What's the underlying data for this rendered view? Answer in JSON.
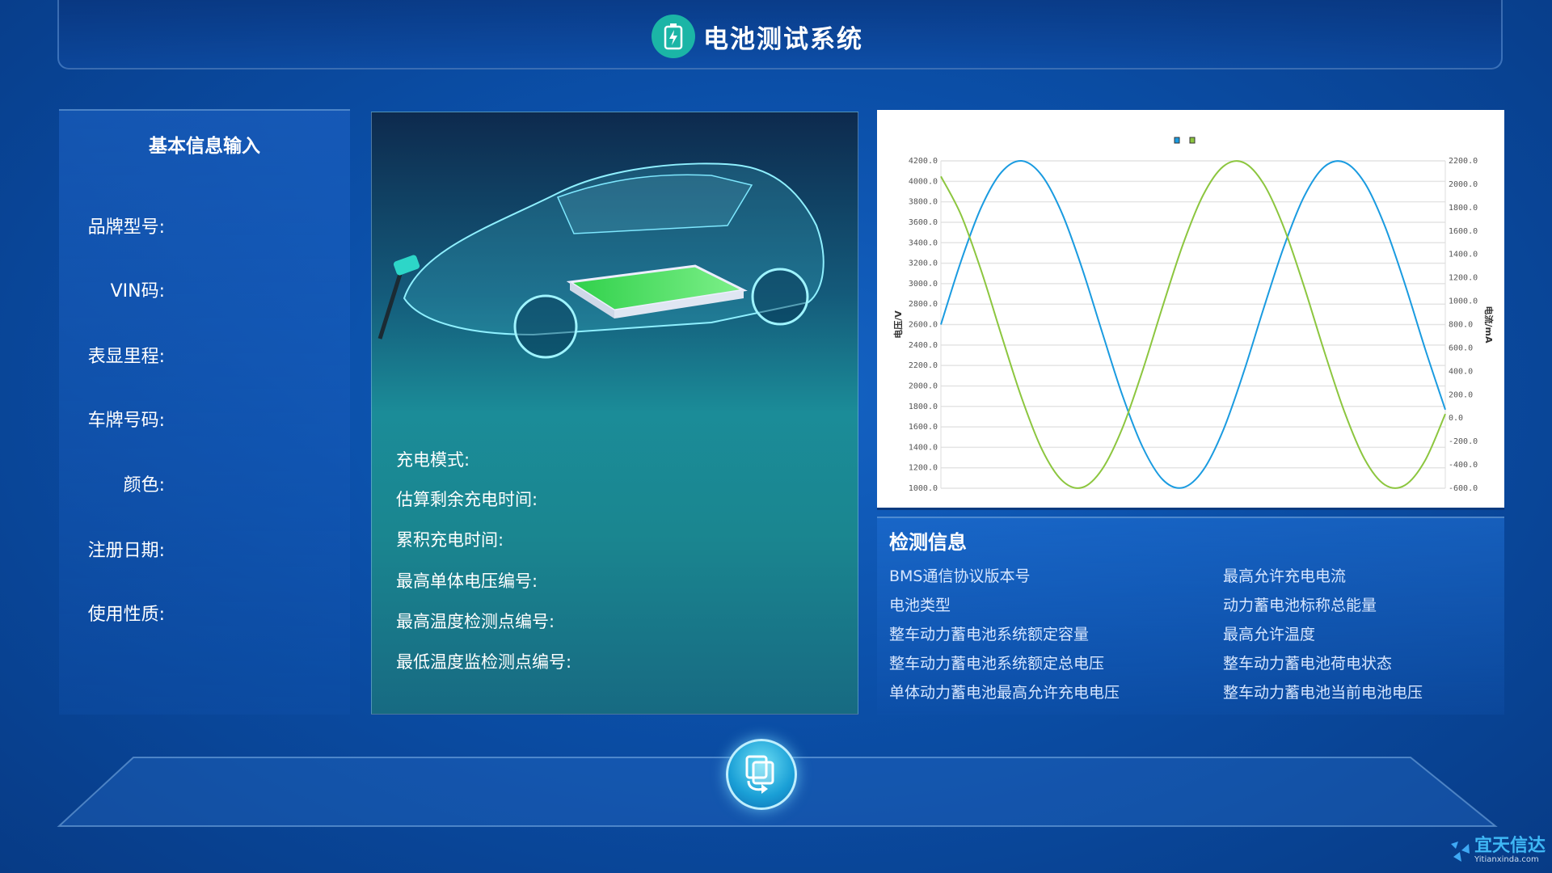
{
  "header": {
    "title": "电池测试系统",
    "icon": "battery-charging-icon",
    "accent": "#1bb5a6"
  },
  "basic_info": {
    "title": "基本信息输入",
    "labels": [
      "品牌型号:",
      "VIN码:",
      "表显里程:",
      "车牌号码:",
      "颜色:",
      "注册日期:",
      "使用性质:"
    ]
  },
  "charging": {
    "labels": [
      "充电模式:",
      "估算剩余充电时间:",
      "累积充电时间:",
      "最高单体电压编号:",
      "最高温度检测点编号:",
      "最低温度监检测点编号:"
    ]
  },
  "detection": {
    "title": "检测信息",
    "left": [
      "BMS通信协议版本号",
      "电池类型",
      "整车动力蓄电池系统额定容量",
      "整车动力蓄电池系统额定总电压",
      "单体动力蓄电池最高允许充电电压"
    ],
    "right": [
      "最高允许充电电流",
      "动力蓄电池标称总能量",
      "最高允许温度",
      "整车动力蓄电池荷电状态",
      "整车动力蓄电池当前电池电压"
    ]
  },
  "logo": {
    "name": "宜天信达",
    "sub": "Yitianxinda.com"
  },
  "action_button": {
    "icon": "copy-refresh-icon"
  },
  "chart_data": {
    "type": "line",
    "ylabel": "电压/V",
    "y2label": "电流/mA",
    "ylim": [
      1000,
      4200
    ],
    "y2lim": [
      -600,
      2200
    ],
    "yticks": [
      "1000.0",
      "1200.0",
      "1400.0",
      "1600.0",
      "1800.0",
      "2000.0",
      "2200.0",
      "2400.0",
      "2600.0",
      "2800.0",
      "3000.0",
      "3200.0",
      "3400.0",
      "3600.0",
      "3800.0",
      "4000.0",
      "4200.0"
    ],
    "y2ticks": [
      "-600.0",
      "-400.0",
      "-200.0",
      "0.0",
      "200.0",
      "400.0",
      "600.0",
      "800.0",
      "1000.0",
      "1200.0",
      "1400.0",
      "1600.0",
      "1800.0",
      "2000.0",
      "2200.0"
    ],
    "grid": true,
    "legend": "top-center",
    "series": [
      {
        "axis": "left",
        "color": "#1a9be0",
        "values": [
          2600,
          3221,
          3746,
          4089,
          4200,
          4058,
          3689,
          3148,
          2520,
          1906,
          1402,
          1083,
          1006,
          1177,
          1571,
          2130,
          2760,
          3361,
          3851,
          4142,
          4186,
          3986,
          3565,
          2995,
          2362,
          1768
        ]
      },
      {
        "axis": "right",
        "color": "#8cc63f",
        "values": [
          2067,
          1737,
          1260,
          709,
          174,
          -265,
          -533,
          -594,
          -435,
          -84,
          408,
          960,
          1487,
          1908,
          2153,
          2186,
          2002,
          1629,
          1125,
          571,
          54,
          -351,
          -570,
          -574,
          -362,
          35
        ]
      }
    ]
  }
}
